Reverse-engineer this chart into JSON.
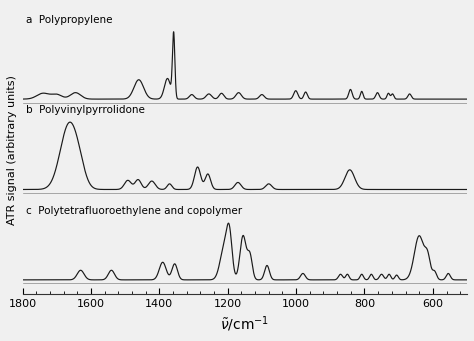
{
  "title": "",
  "xlabel": "\\tilde{\\nu}/cm^{-1}",
  "ylabel": "ATR signal (arbitrary units)",
  "xlim": [
    1800,
    500
  ],
  "x_ticks": [
    1800,
    1600,
    1400,
    1200,
    1000,
    800,
    600
  ],
  "spectra": [
    {
      "label": "a",
      "name": "Polypropylene"
    },
    {
      "label": "b",
      "name": "Polyvinylpyrrolidone"
    },
    {
      "label": "c",
      "name": "Polytetrafluoroethylene and copolymer"
    }
  ],
  "line_color": "#1a1a1a",
  "background_color": "#f0f0f0",
  "linewidth": 0.85
}
